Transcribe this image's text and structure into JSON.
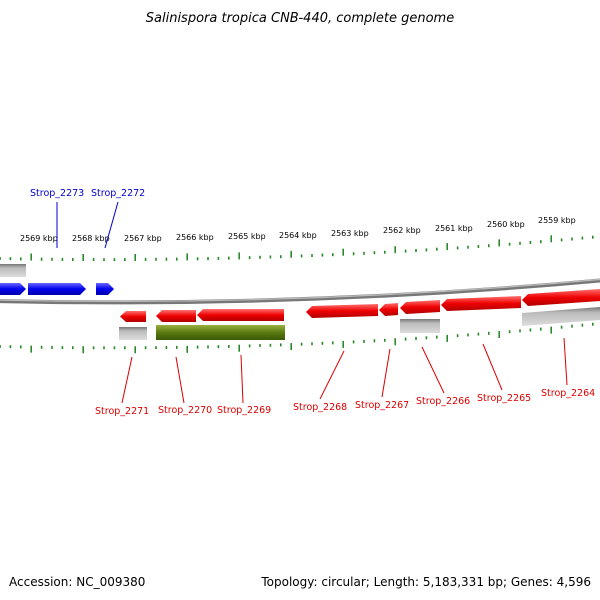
{
  "title": "Salinispora tropica CNB-440, complete genome",
  "footer": {
    "accession": "Accession: NC_009380",
    "summary": "Topology: circular; Length: 5,183,331 bp; Genes: 4,596"
  },
  "scale_labels": [
    "2569 kbp",
    "2568 kbp",
    "2567 kbp",
    "2566 kbp",
    "2565 kbp",
    "2564 kbp",
    "2563 kbp",
    "2562 kbp",
    "2561 kbp",
    "2560 kbp",
    "2559 kbp"
  ],
  "genes_top": [
    "Strop_2273",
    "Strop_2272"
  ],
  "genes_bottom": [
    "Strop_2271",
    "Strop_2270",
    "Strop_2269",
    "Strop_2268",
    "Strop_2267",
    "Strop_2266",
    "Strop_2265",
    "Strop_2264"
  ],
  "colors": {
    "forward_gene": "#0000ee",
    "reverse_gene": "#ee0000",
    "highlight_gene": "#5a7a10",
    "ticks": "#2a8a2a",
    "backbone": "#888888",
    "rna_gray": "#aaaaaa"
  }
}
